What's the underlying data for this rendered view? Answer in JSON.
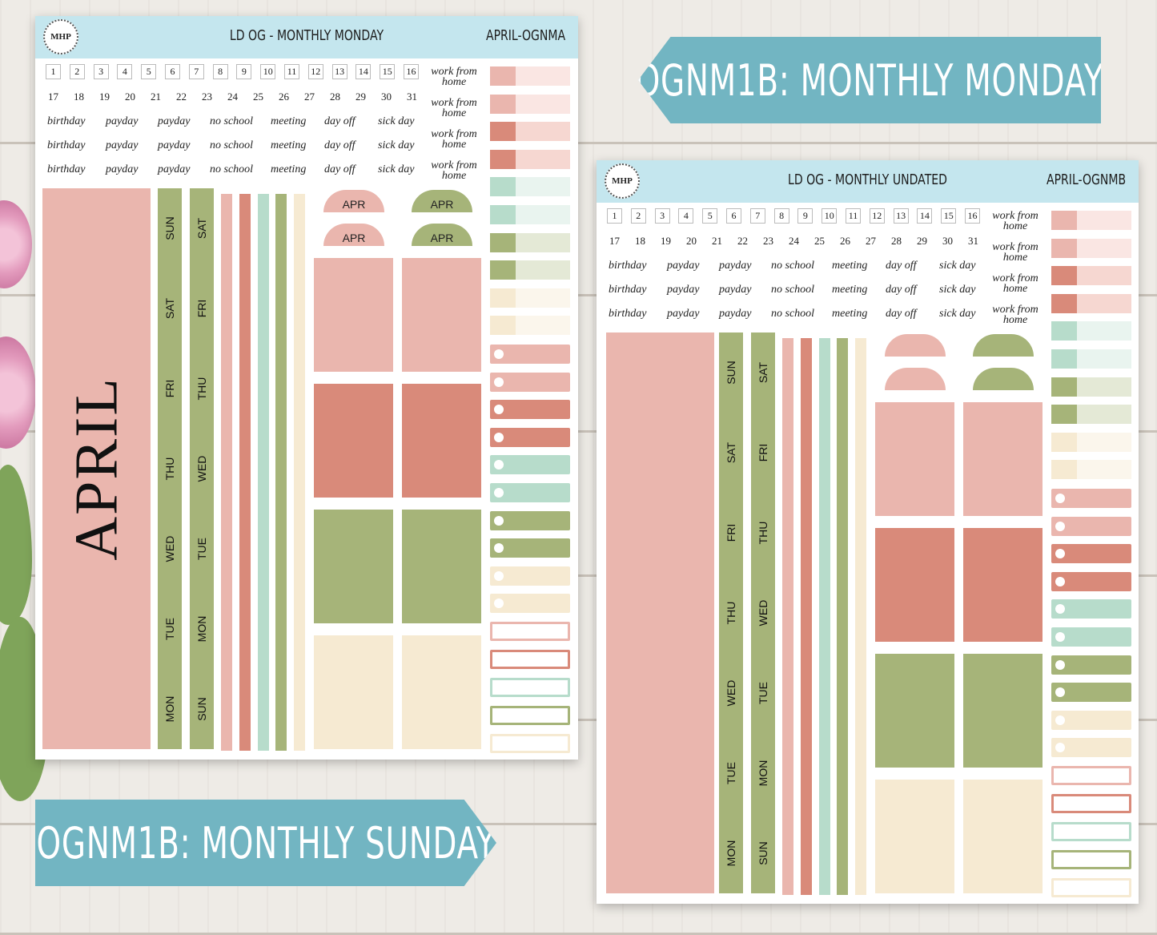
{
  "colors": {
    "pink": "#eab6ae",
    "pink_light": "#fae6e3",
    "coral": "#d98a7a",
    "coral_light": "#f6d7d1",
    "mint": "#b7dccb",
    "mint_light": "#e9f4ef",
    "olive": "#a6b479",
    "olive_light": "#e4e9d6",
    "cream": "#f6ead2",
    "cream_light": "#fbf6ec",
    "header": "#c4e6ee",
    "banner": "#72b5c2"
  },
  "banners": {
    "top": "OGNM1B: MONTHLY MONDAY",
    "bottom": "OGNM1B: MONTHLY SUNDAY"
  },
  "sheet_a": {
    "logo": "MHP",
    "title": "LD OG - MONTHLY MONDAY",
    "code": "APRIL-OGNMA",
    "month": "APRIL",
    "dome_label": "APR",
    "strip1": [
      "SUN",
      "SAT",
      "FRI",
      "THU",
      "WED",
      "TUE",
      "MON"
    ],
    "strip2": [
      "SAT",
      "FRI",
      "THU",
      "WED",
      "TUE",
      "MON",
      "SUN"
    ]
  },
  "sheet_b": {
    "logo": "MHP",
    "title": "LD OG - MONTHLY UNDATED",
    "code": "APRIL-OGNMB",
    "strip1": [
      "SUN",
      "SAT",
      "FRI",
      "THU",
      "WED",
      "TUE",
      "MON"
    ],
    "strip2": [
      "SAT",
      "FRI",
      "THU",
      "WED",
      "TUE",
      "MON",
      "SUN"
    ]
  },
  "numbers_row1": [
    "1",
    "2",
    "3",
    "4",
    "5",
    "6",
    "7",
    "8",
    "9",
    "10",
    "11",
    "12",
    "13",
    "14",
    "15",
    "16"
  ],
  "numbers_row2": [
    "17",
    "18",
    "19",
    "20",
    "21",
    "22",
    "23",
    "24",
    "25",
    "26",
    "27",
    "28",
    "29",
    "30",
    "31"
  ],
  "words": [
    "birthday",
    "payday",
    "payday",
    "no school",
    "meeting",
    "day off",
    "sick day"
  ],
  "wfh": "work from home"
}
